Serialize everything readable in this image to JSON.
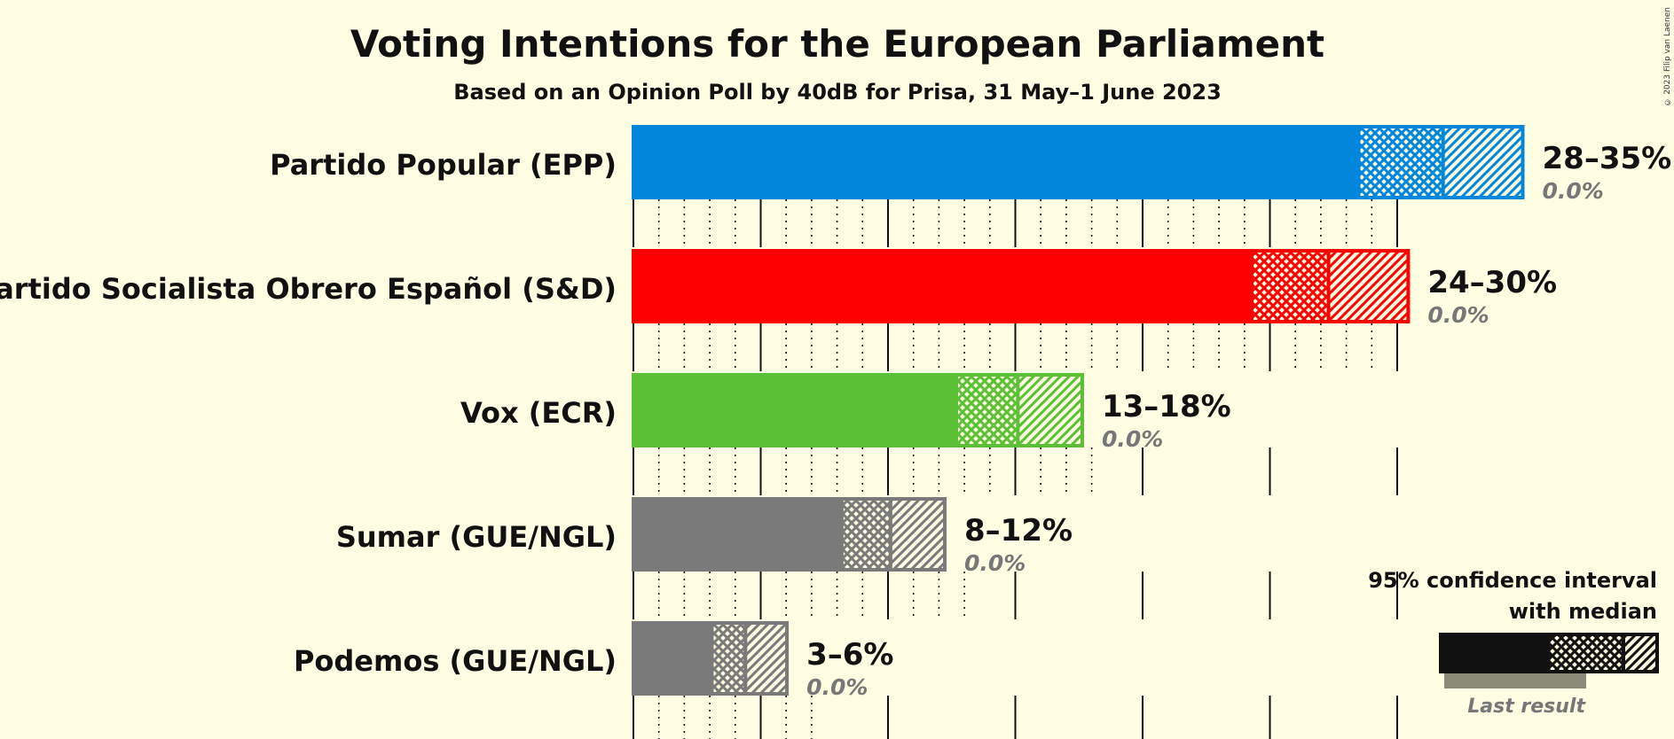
{
  "title": "Voting Intentions for the European Parliament",
  "subtitle": "Based on an Opinion Poll by 40dB for Prisa, 31 May–1 June 2023",
  "copyright": "© 2023 Filip van Laenen",
  "legend": {
    "line1": "95% confidence interval",
    "line2": "with median",
    "last_result": "Last result"
  },
  "chart_data": {
    "type": "bar",
    "orientation": "horizontal",
    "title": "Voting Intentions for the European Parliament",
    "subtitle": "Based on an Opinion Poll by 40dB for Prisa, 31 May–1 June 2023",
    "xlim": [
      0,
      35
    ],
    "gridlines_major": [
      0,
      5,
      10,
      15,
      20,
      25,
      30
    ],
    "gridline_step_minor": 1,
    "categories": [
      "Partido Popular (EPP)",
      "Partido Socialista Obrero Español (S&D)",
      "Vox (ECR)",
      "Sumar (GUE/NGL)",
      "Podemos (GUE/NGL)"
    ],
    "bars": [
      {
        "party": "Partido Popular (EPP)",
        "color": "#0087DC",
        "low95": 28.5,
        "median": 31.8,
        "high95": 35.0,
        "label": "28–35%",
        "last": "0.0%"
      },
      {
        "party": "Partido Socialista Obrero Español (S&D)",
        "color": "#FF0000",
        "low95": 24.3,
        "median": 27.3,
        "high95": 30.5,
        "label": "24–30%",
        "last": "0.0%"
      },
      {
        "party": "Vox (ECR)",
        "color": "#5BC035",
        "low95": 12.7,
        "median": 15.1,
        "high95": 17.7,
        "label": "13–18%",
        "last": "0.0%"
      },
      {
        "party": "Sumar (GUE/NGL)",
        "color": "#7A7A7A",
        "low95": 8.2,
        "median": 10.1,
        "high95": 12.3,
        "label": "8–12%",
        "last": "0.0%"
      },
      {
        "party": "Podemos (GUE/NGL)",
        "color": "#7A7A7A",
        "low95": 3.1,
        "median": 4.4,
        "high95": 6.1,
        "label": "3–6%",
        "last": "0.0%"
      }
    ]
  }
}
